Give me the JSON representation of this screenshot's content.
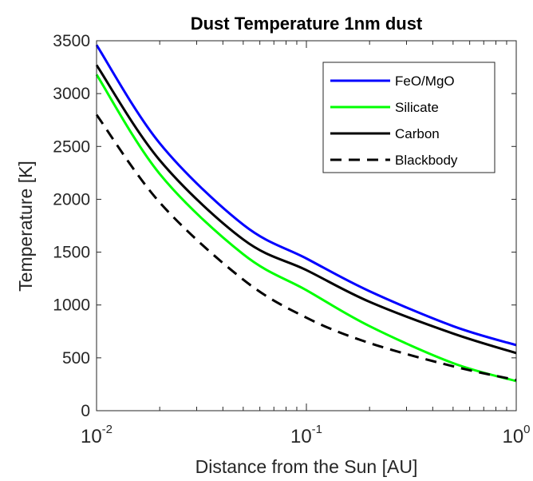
{
  "chart_data": {
    "type": "line",
    "title": "Dust Temperature 1nm dust",
    "xlabel": "Distance from the Sun [AU]",
    "ylabel": "Temperature [K]",
    "xscale": "log",
    "xlim": [
      0.01,
      1
    ],
    "ylim": [
      0,
      3500
    ],
    "grid": false,
    "legend_position": "top-right",
    "y_ticks": [
      0,
      500,
      1000,
      1500,
      2000,
      2500,
      3000,
      3500
    ],
    "y_tick_labels": [
      "0",
      "500",
      "1000",
      "1500",
      "2000",
      "2500",
      "3000",
      "3500"
    ],
    "x_ticks": [
      0.01,
      0.1,
      1
    ],
    "x_tick_labels": [
      {
        "base": "10",
        "exp": "-2"
      },
      {
        "base": "10",
        "exp": "-1"
      },
      {
        "base": "10",
        "exp": "0"
      }
    ],
    "x": [
      0.01,
      0.02,
      0.05,
      0.1,
      0.2,
      0.5,
      1.0
    ],
    "series": [
      {
        "name": "FeO/MgO",
        "color": "#0000ff",
        "style": "solid",
        "values": [
          3460,
          2530,
          1760,
          1440,
          1130,
          800,
          620
        ]
      },
      {
        "name": "Silicate",
        "color": "#00ff00",
        "style": "solid",
        "values": [
          3180,
          2240,
          1480,
          1140,
          800,
          450,
          280
        ]
      },
      {
        "name": "Carbon",
        "color": "#000000",
        "style": "solid",
        "values": [
          3270,
          2370,
          1620,
          1330,
          1030,
          730,
          545
        ]
      },
      {
        "name": "Blackbody",
        "color": "#000000",
        "style": "dashed",
        "values": [
          2800,
          1970,
          1240,
          880,
          640,
          420,
          290
        ]
      }
    ]
  }
}
